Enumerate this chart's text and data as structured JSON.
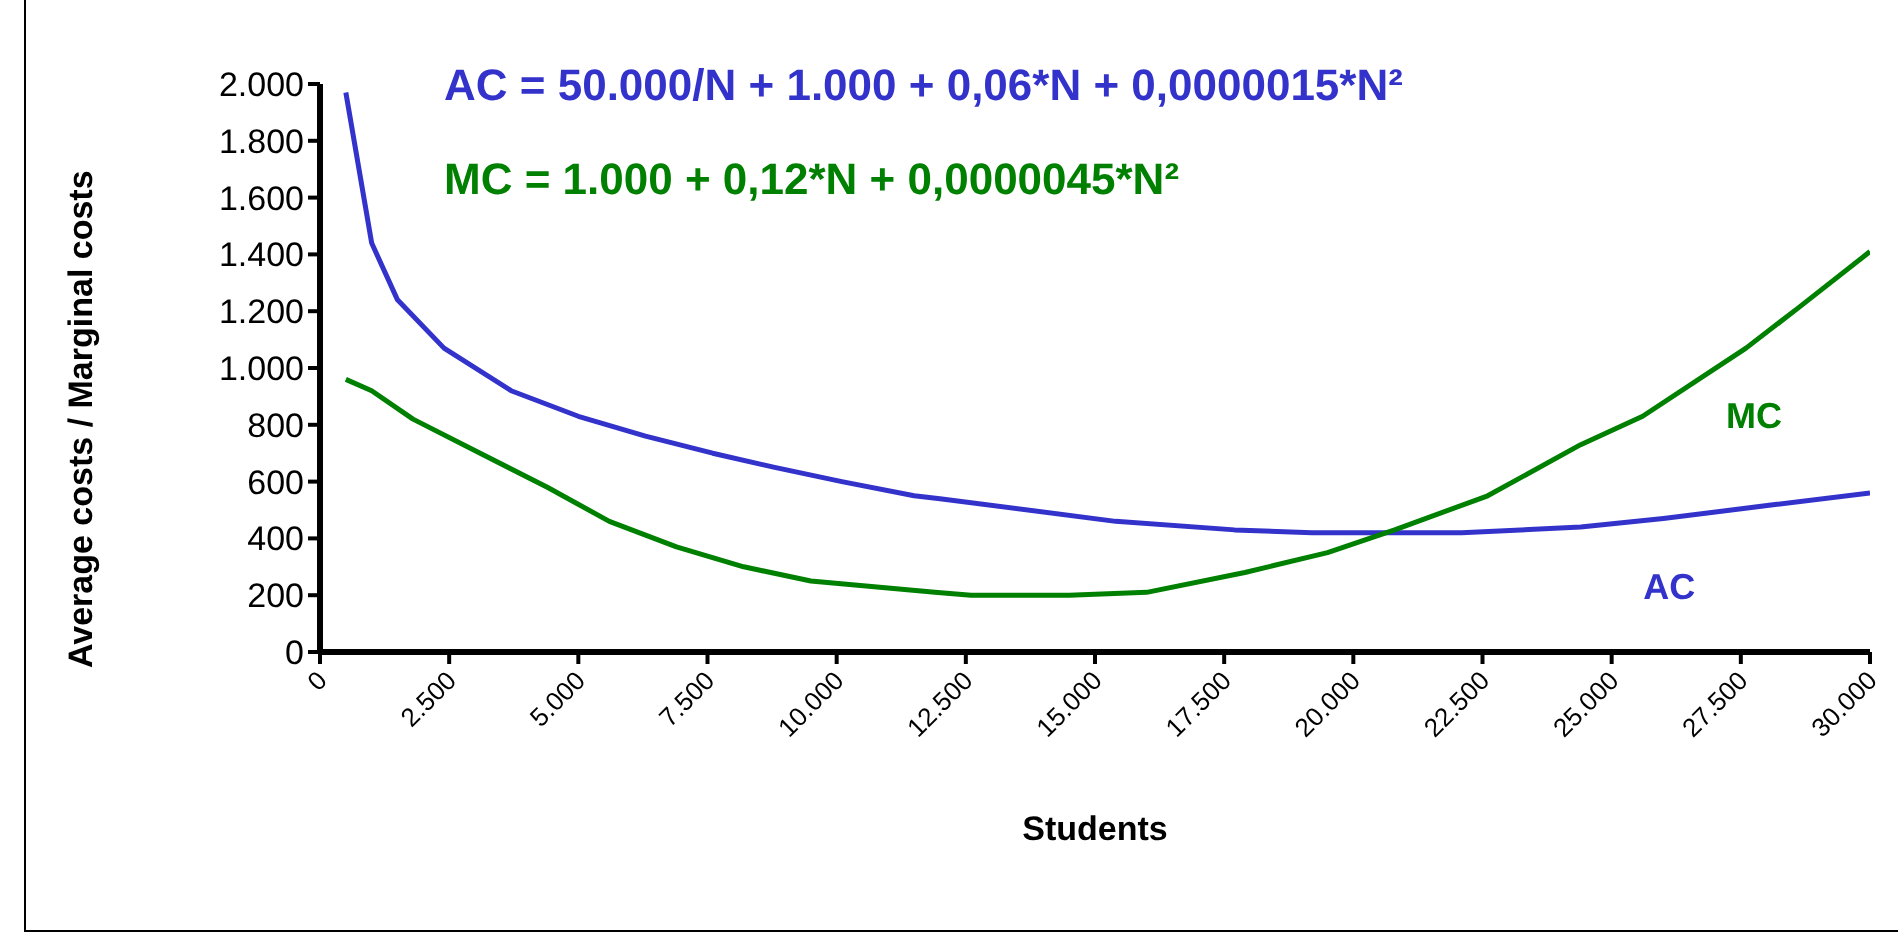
{
  "chart_data": {
    "type": "line",
    "xlabel": "Students",
    "ylabel": "Average costs / Marginal costs",
    "xlim": [
      0,
      30000
    ],
    "ylim": [
      0,
      2000
    ],
    "xticks": [
      0,
      {
        "value": 2500,
        "label": "2.500"
      },
      {
        "value": 5000,
        "label": "5.000"
      },
      {
        "value": 7500,
        "label": "7.500"
      },
      {
        "value": 10000,
        "label": "10.000"
      },
      {
        "value": 12500,
        "label": "12.500"
      },
      {
        "value": 15000,
        "label": "15.000"
      },
      {
        "value": 17500,
        "label": "17.500"
      },
      {
        "value": 20000,
        "label": "20.000"
      },
      {
        "value": 22500,
        "label": "22.500"
      },
      {
        "value": 25000,
        "label": "25.000"
      },
      {
        "value": 27500,
        "label": "27.500"
      },
      {
        "value": 30000,
        "label": "30.000"
      }
    ],
    "yticks": [
      0,
      200,
      400,
      600,
      800,
      {
        "value": 1000,
        "label": "1.000"
      },
      {
        "value": 1200,
        "label": "1.200"
      },
      {
        "value": 1400,
        "label": "1.400"
      },
      {
        "value": 1600,
        "label": "1.600"
      },
      {
        "value": 1800,
        "label": "1.800"
      },
      {
        "value": 2000,
        "label": "2.000"
      }
    ],
    "grid": false,
    "legend": false,
    "marker": "none",
    "line_style": "solid",
    "series": [
      {
        "name": "AC",
        "color": "#3333cc",
        "x": [
          500,
          1000,
          1500,
          2400,
          3700,
          5000,
          6300,
          7600,
          8800,
          10100,
          11500,
          12000,
          15400,
          17700,
          19200,
          22100,
          24400,
          26000,
          28200,
          30000
        ],
        "values": [
          1970,
          1440,
          1240,
          1070,
          920,
          830,
          760,
          700,
          650,
          600,
          550,
          540,
          460,
          430,
          420,
          420,
          440,
          470,
          520,
          560
        ]
      },
      {
        "name": "MC",
        "color": "#008000",
        "x": [
          500,
          1000,
          1800,
          3100,
          4400,
          5600,
          6900,
          8200,
          9500,
          11900,
          12600,
          14500,
          16000,
          17900,
          19500,
          20800,
          22600,
          24400,
          25600,
          27600,
          28600,
          30000
        ],
        "values": [
          960,
          920,
          820,
          700,
          580,
          460,
          370,
          300,
          250,
          210,
          200,
          200,
          210,
          280,
          350,
          430,
          550,
          730,
          830,
          1070,
          1210,
          1410
        ]
      }
    ],
    "annotations": [
      "AC = 50.000/N + 1.000 + 0,06*N + 0,0000015*N²",
      "MC = 1.000 + 0,12*N + 0,0000045*N²"
    ]
  }
}
